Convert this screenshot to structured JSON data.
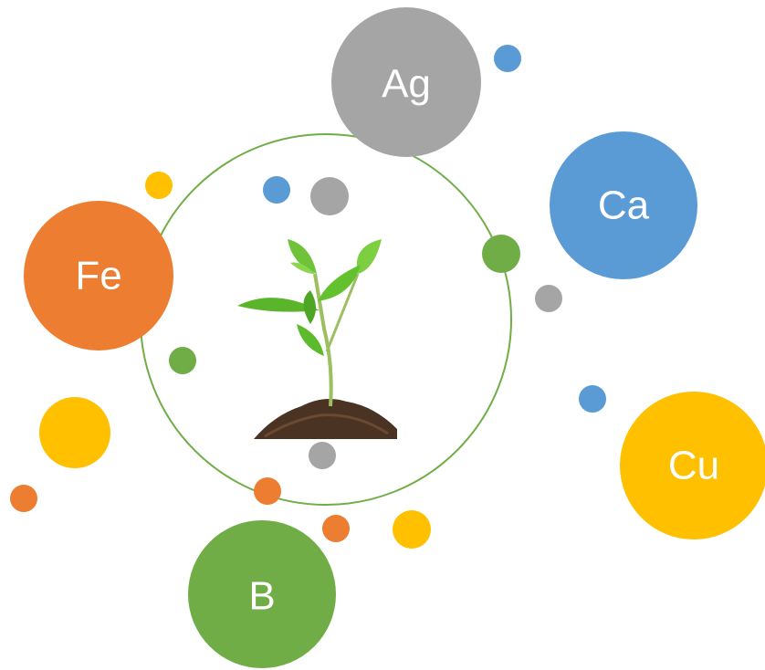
{
  "nodes": [
    {
      "label": "Ag"
    },
    {
      "label": "Ca"
    },
    {
      "label": "Fe"
    },
    {
      "label": "Cu"
    },
    {
      "label": "B"
    }
  ]
}
